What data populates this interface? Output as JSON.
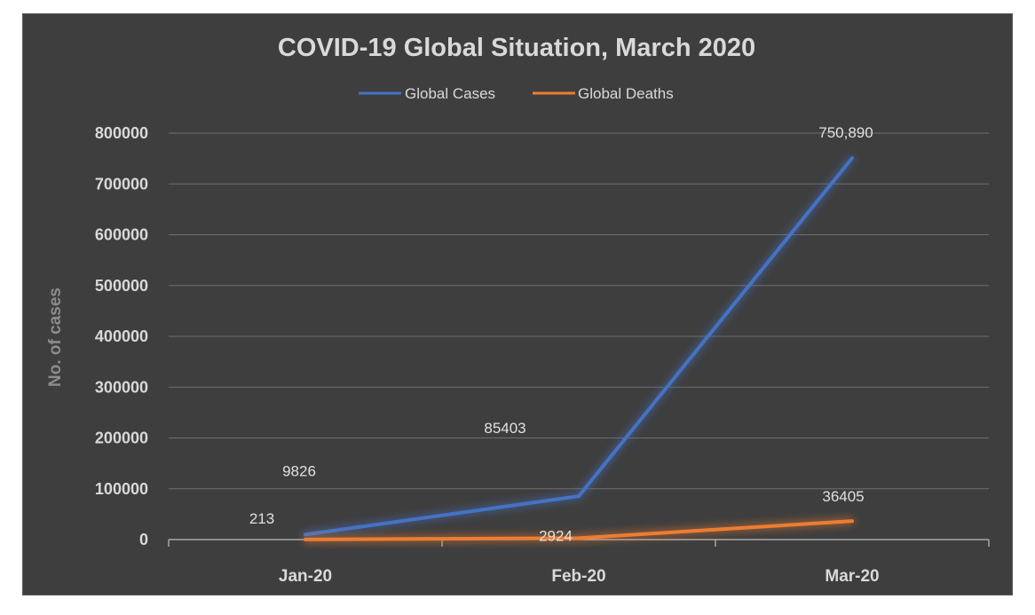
{
  "chart_data": {
    "type": "line",
    "title": "COVID-19 Global Situation, March 2020",
    "xlabel": "",
    "ylabel": "No. of cases",
    "categories": [
      "Jan-20",
      "Feb-20",
      "Mar-20"
    ],
    "ylim": [
      0,
      800000
    ],
    "yticks": [
      "0",
      "100000",
      "200000",
      "300000",
      "400000",
      "500000",
      "600000",
      "700000",
      "800000"
    ],
    "grid": true,
    "legend_position": "top-center",
    "series": [
      {
        "name": "Global Cases",
        "color": "#4472c4",
        "values": [
          9826,
          85403,
          750890
        ],
        "labels": [
          "9826",
          "85403",
          "750,890"
        ]
      },
      {
        "name": "Global Deaths",
        "color": "#ed7d31",
        "values": [
          213,
          2924,
          36405
        ],
        "labels": [
          "213",
          "2924",
          "36405"
        ]
      }
    ]
  }
}
